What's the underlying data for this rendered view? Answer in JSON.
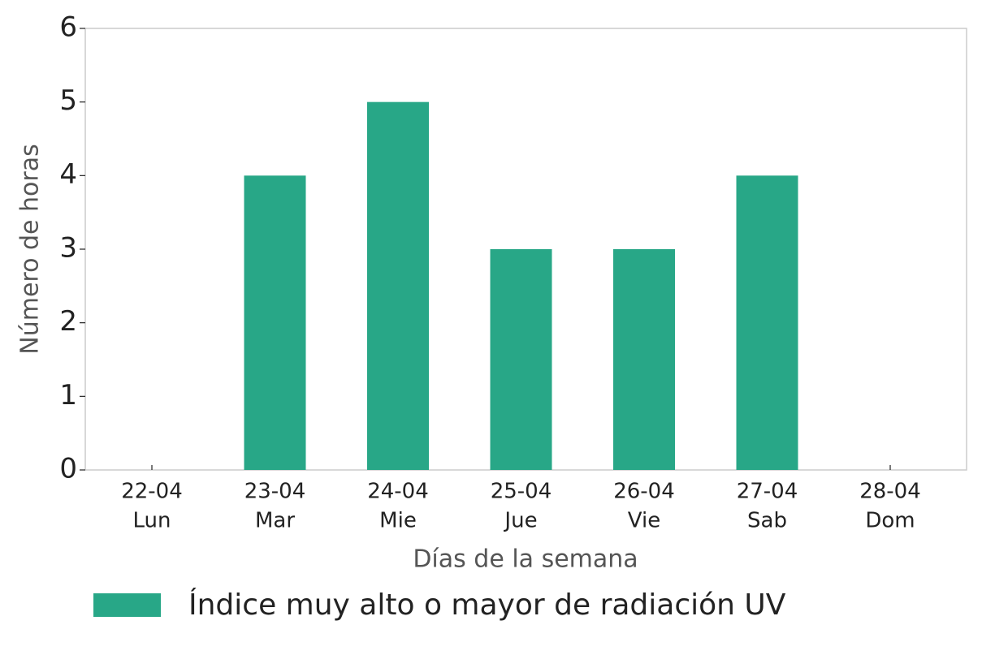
{
  "chart_data": {
    "type": "bar",
    "x_label": "Días de la semana",
    "y_label": "Número de horas",
    "categories": [
      [
        "22-04",
        "Lun"
      ],
      [
        "23-04",
        "Mar"
      ],
      [
        "24-04",
        "Mie"
      ],
      [
        "25-04",
        "Jue"
      ],
      [
        "26-04",
        "Vie"
      ],
      [
        "27-04",
        "Sab"
      ],
      [
        "28-04",
        "Dom"
      ]
    ],
    "series": [
      {
        "name": "Índice muy alto o mayor de radiación UV",
        "color": "#28a787",
        "values": [
          0,
          4,
          5,
          3,
          3,
          4,
          0
        ]
      }
    ],
    "ylim": [
      0,
      6
    ],
    "yticks": [
      0,
      1,
      2,
      3,
      4,
      5,
      6
    ],
    "grid": false,
    "legend": "bottom"
  }
}
